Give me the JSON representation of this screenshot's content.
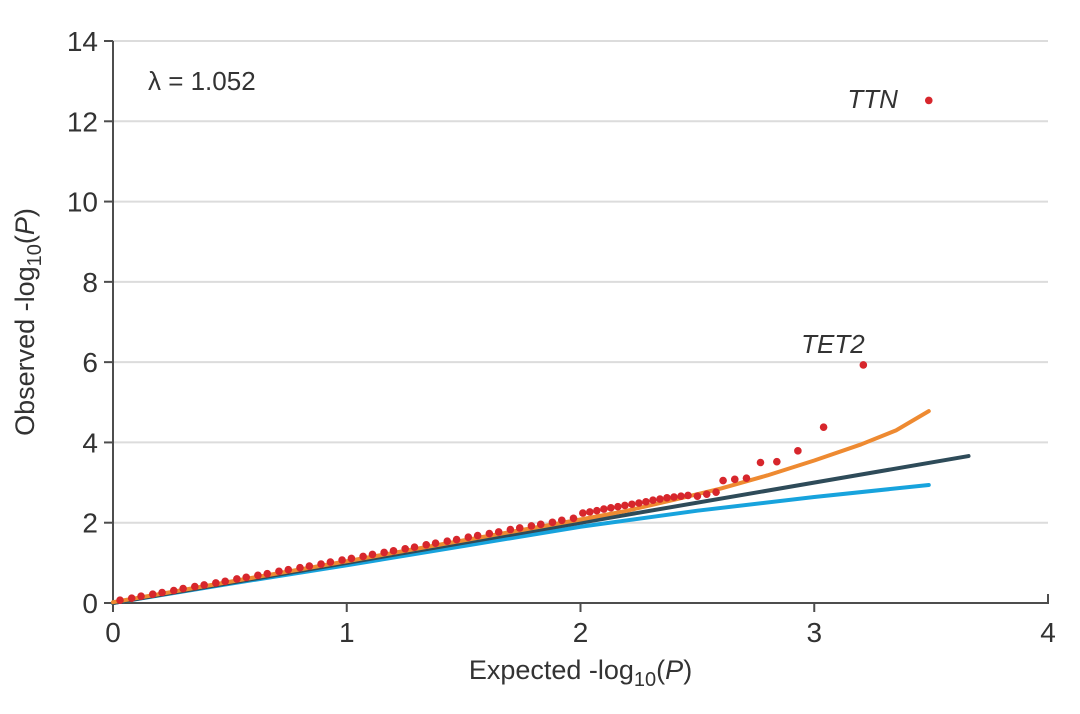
{
  "chart_data": {
    "type": "scatter",
    "title": "",
    "xlabel_rich": [
      {
        "t": "Expected -log"
      },
      {
        "t": "10",
        "sub": true
      },
      {
        "t": "("
      },
      {
        "t": "P",
        "italic": true
      },
      {
        "t": ")"
      }
    ],
    "ylabel_rich": [
      {
        "t": "Observed -log"
      },
      {
        "t": "10",
        "sub": true
      },
      {
        "t": "("
      },
      {
        "t": "P",
        "italic": true
      },
      {
        "t": ")"
      }
    ],
    "xlim": [
      0,
      4
    ],
    "ylim": [
      0,
      14
    ],
    "xticks": [
      0,
      1,
      2,
      3,
      4
    ],
    "yticks": [
      0,
      2,
      4,
      6,
      8,
      10,
      12,
      14
    ],
    "grid": "horizontal-only",
    "legend": "none",
    "colors": {
      "scatter": "#d7262c",
      "upper_line": "#ee8a31",
      "identity_line": "#2e4b59",
      "lower_line": "#17a3dd",
      "gridline": "#dcdcdc",
      "axis": "#4d4d4d",
      "text": "#333333"
    },
    "annotations": [
      {
        "id": "lambda-annotation",
        "text": "λ = 1.052",
        "x": 0.38,
        "y": 13.0,
        "italic": false
      },
      {
        "id": "gene-label-ttn",
        "text": "TTN",
        "x": 3.25,
        "y": 12.55,
        "italic": true
      },
      {
        "id": "gene-label-tet2",
        "text": "TET2",
        "x": 3.08,
        "y": 6.45,
        "italic": true
      }
    ],
    "series": [
      {
        "name": "lower-model-line",
        "color": "#17a3dd",
        "width": 4,
        "points": [
          [
            0,
            0
          ],
          [
            0.5,
            0.48
          ],
          [
            1,
            0.94
          ],
          [
            1.5,
            1.42
          ],
          [
            2,
            1.9
          ],
          [
            2.5,
            2.3
          ],
          [
            3,
            2.64
          ],
          [
            3.49,
            2.94
          ]
        ]
      },
      {
        "name": "identity-line",
        "color": "#2e4b59",
        "width": 4,
        "points": [
          [
            0,
            0
          ],
          [
            3.66,
            3.66
          ]
        ]
      },
      {
        "name": "upper-model-line",
        "color": "#ee8a31",
        "width": 4,
        "points": [
          [
            0,
            0.02
          ],
          [
            0.5,
            0.53
          ],
          [
            1,
            1.04
          ],
          [
            1.5,
            1.56
          ],
          [
            2,
            2.08
          ],
          [
            2.2,
            2.3
          ],
          [
            2.4,
            2.57
          ],
          [
            2.6,
            2.85
          ],
          [
            2.8,
            3.18
          ],
          [
            3,
            3.55
          ],
          [
            3.2,
            3.95
          ],
          [
            3.35,
            4.3
          ],
          [
            3.49,
            4.78
          ]
        ]
      }
    ],
    "scatter": {
      "name": "observed-gene-points",
      "color": "#d7262c",
      "radius": 3.8,
      "points": [
        [
          0.03,
          0.07
        ],
        [
          0.08,
          0.12
        ],
        [
          0.12,
          0.17
        ],
        [
          0.17,
          0.22
        ],
        [
          0.21,
          0.26
        ],
        [
          0.26,
          0.31
        ],
        [
          0.3,
          0.36
        ],
        [
          0.35,
          0.41
        ],
        [
          0.39,
          0.45
        ],
        [
          0.44,
          0.5
        ],
        [
          0.48,
          0.54
        ],
        [
          0.53,
          0.6
        ],
        [
          0.57,
          0.64
        ],
        [
          0.62,
          0.69
        ],
        [
          0.66,
          0.73
        ],
        [
          0.71,
          0.79
        ],
        [
          0.75,
          0.83
        ],
        [
          0.8,
          0.88
        ],
        [
          0.84,
          0.92
        ],
        [
          0.89,
          0.97
        ],
        [
          0.93,
          1.02
        ],
        [
          0.98,
          1.07
        ],
        [
          1.02,
          1.11
        ],
        [
          1.07,
          1.16
        ],
        [
          1.11,
          1.21
        ],
        [
          1.16,
          1.26
        ],
        [
          1.2,
          1.3
        ],
        [
          1.25,
          1.35
        ],
        [
          1.29,
          1.39
        ],
        [
          1.34,
          1.45
        ],
        [
          1.38,
          1.49
        ],
        [
          1.43,
          1.54
        ],
        [
          1.47,
          1.58
        ],
        [
          1.52,
          1.64
        ],
        [
          1.56,
          1.68
        ],
        [
          1.61,
          1.73
        ],
        [
          1.65,
          1.77
        ],
        [
          1.7,
          1.83
        ],
        [
          1.74,
          1.87
        ],
        [
          1.79,
          1.92
        ],
        [
          1.83,
          1.96
        ],
        [
          1.88,
          2.01
        ],
        [
          1.92,
          2.06
        ],
        [
          1.97,
          2.11
        ],
        [
          2.01,
          2.24
        ],
        [
          2.04,
          2.27
        ],
        [
          2.07,
          2.3
        ],
        [
          2.1,
          2.34
        ],
        [
          2.13,
          2.37
        ],
        [
          2.16,
          2.4
        ],
        [
          2.19,
          2.43
        ],
        [
          2.22,
          2.46
        ],
        [
          2.25,
          2.49
        ],
        [
          2.28,
          2.52
        ],
        [
          2.31,
          2.56
        ],
        [
          2.34,
          2.59
        ],
        [
          2.37,
          2.62
        ],
        [
          2.4,
          2.64
        ],
        [
          2.43,
          2.66
        ],
        [
          2.46,
          2.68
        ],
        [
          2.5,
          2.66
        ],
        [
          2.54,
          2.71
        ],
        [
          2.58,
          2.76
        ],
        [
          2.61,
          3.05
        ],
        [
          2.66,
          3.08
        ],
        [
          2.71,
          3.11
        ],
        [
          2.77,
          3.5
        ],
        [
          2.84,
          3.52
        ],
        [
          2.93,
          3.79
        ],
        [
          3.04,
          4.38
        ],
        [
          3.21,
          5.93
        ],
        [
          3.49,
          12.52
        ]
      ]
    }
  }
}
